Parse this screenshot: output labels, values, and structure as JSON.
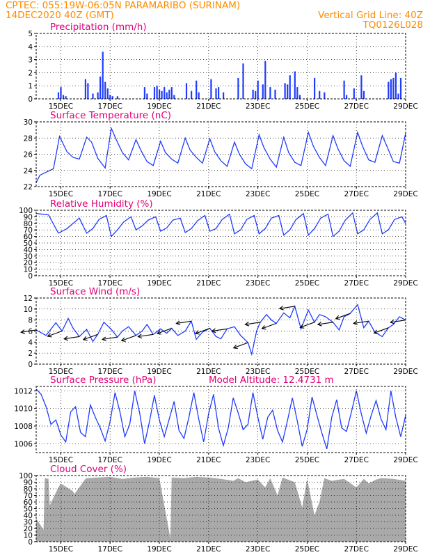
{
  "header": {
    "line1_left": "CPTEC:    055:19W-06:05N   PARAMARIBO (SURINAM)",
    "line2_left": "14DEC2020 40Z (GMT)",
    "line2_right": "Vertical Grid Line: 40Z",
    "line3_right": "TQ0126L028"
  },
  "colors": {
    "header": "#ff8c00",
    "titles": "#e0007a",
    "series": "#1f3cff",
    "cloud": "#a9a9a9",
    "vectors": "#000000"
  },
  "x_tick_labels": [
    "15DEC",
    "17DEC",
    "19DEC",
    "21DEC",
    "23DEC",
    "25DEC",
    "27DEC",
    "29DEC"
  ],
  "chart_data": [
    {
      "type": "bar",
      "title": "Precipitation (mm/h)",
      "ylim": [
        0,
        5
      ],
      "yticks": [
        0,
        1,
        2,
        3,
        4,
        5
      ],
      "x_units": "days since 14DEC2020 00Z",
      "xlim": [
        0,
        15
      ],
      "x": [
        0.9,
        1.0,
        1.1,
        1.2,
        2.0,
        2.1,
        2.3,
        2.5,
        2.6,
        2.7,
        2.8,
        2.9,
        3.0,
        3.1,
        3.3,
        4.4,
        4.5,
        4.8,
        4.9,
        5.0,
        5.1,
        5.2,
        5.3,
        5.4,
        5.5,
        5.6,
        6.1,
        6.3,
        6.5,
        6.6,
        7.1,
        7.3,
        7.4,
        7.6,
        8.2,
        8.4,
        8.8,
        8.9,
        9.0,
        9.2,
        9.3,
        9.5,
        9.7,
        10.1,
        10.2,
        10.3,
        10.5,
        10.6,
        10.7,
        11.3,
        11.5,
        11.7,
        12.5,
        12.6,
        12.9,
        13.2,
        13.3,
        14.3,
        14.4,
        14.5,
        14.6,
        14.7,
        14.8
      ],
      "values": [
        0.5,
        0.9,
        0.3,
        0.2,
        1.5,
        1.2,
        0.4,
        0.5,
        1.7,
        3.6,
        1.3,
        0.8,
        0.3,
        0.2,
        0.2,
        0.9,
        0.4,
        0.9,
        1.0,
        0.7,
        0.6,
        0.9,
        0.5,
        0.7,
        0.9,
        0.3,
        1.2,
        0.6,
        1.4,
        0.5,
        1.5,
        0.8,
        0.9,
        0.5,
        1.6,
        2.7,
        0.7,
        0.6,
        1.4,
        1.1,
        2.9,
        0.9,
        0.7,
        1.2,
        1.1,
        1.8,
        2.1,
        0.9,
        0.3,
        1.6,
        0.6,
        0.5,
        1.4,
        0.3,
        0.8,
        1.8,
        0.6,
        1.3,
        1.5,
        1.6,
        2.0,
        0.4,
        1.6
      ]
    },
    {
      "type": "line",
      "title": "Surface Temperature (nC)",
      "ylim": [
        22,
        30
      ],
      "yticks": [
        22,
        24,
        26,
        28,
        30
      ],
      "x_units": "days since 14DEC2020 00Z",
      "xlim": [
        0,
        15
      ],
      "x": [
        0,
        0.15,
        0.35,
        0.7,
        0.95,
        1.25,
        1.5,
        1.75,
        2.05,
        2.25,
        2.5,
        2.8,
        3.05,
        3.25,
        3.5,
        3.75,
        4.05,
        4.25,
        4.5,
        4.75,
        5.05,
        5.25,
        5.5,
        5.75,
        6.05,
        6.25,
        6.5,
        6.75,
        7.05,
        7.25,
        7.5,
        7.75,
        8.05,
        8.25,
        8.5,
        8.75,
        9.05,
        9.25,
        9.5,
        9.75,
        10.05,
        10.25,
        10.5,
        10.75,
        11.05,
        11.25,
        11.5,
        11.75,
        12.05,
        12.25,
        12.5,
        12.75,
        13.05,
        13.25,
        13.5,
        13.75,
        14.05,
        14.25,
        14.5,
        14.75,
        15
      ],
      "values": [
        22.5,
        23.4,
        23.7,
        24.2,
        28.2,
        26.3,
        25.6,
        25.4,
        28.1,
        27.5,
        25.5,
        24.3,
        29.2,
        27.8,
        26.2,
        25.3,
        27.8,
        26.5,
        25.1,
        24.6,
        27.6,
        26.2,
        25.4,
        24.9,
        28.0,
        26.5,
        25.6,
        24.9,
        27.9,
        26.3,
        25.2,
        24.5,
        27.5,
        26.0,
        24.8,
        24.2,
        28.4,
        26.8,
        25.4,
        24.4,
        28.1,
        26.2,
        25.0,
        24.6,
        28.7,
        27.0,
        25.6,
        24.6,
        28.3,
        26.7,
        25.2,
        24.5,
        28.7,
        27.0,
        25.3,
        25.0,
        28.3,
        26.9,
        25.1,
        24.9,
        28.6
      ]
    },
    {
      "type": "line",
      "title": "Relative Humidity (%)",
      "ylim": [
        0,
        100
      ],
      "yticks": [
        0,
        10,
        20,
        30,
        40,
        50,
        60,
        70,
        80,
        90,
        100
      ],
      "x_units": "days since 14DEC2020 00Z",
      "xlim": [
        0,
        15
      ],
      "x": [
        0,
        0.5,
        0.9,
        1.25,
        1.5,
        1.75,
        2.05,
        2.3,
        2.55,
        2.85,
        3.05,
        3.3,
        3.55,
        3.85,
        4.05,
        4.3,
        4.55,
        4.85,
        5.05,
        5.3,
        5.55,
        5.85,
        6.05,
        6.3,
        6.55,
        6.85,
        7.05,
        7.3,
        7.55,
        7.85,
        8.05,
        8.3,
        8.55,
        8.85,
        9.05,
        9.3,
        9.55,
        9.85,
        10.05,
        10.3,
        10.55,
        10.85,
        11.05,
        11.3,
        11.55,
        11.85,
        12.05,
        12.3,
        12.55,
        12.85,
        13.05,
        13.3,
        13.55,
        13.85,
        14.05,
        14.3,
        14.55,
        14.85,
        15
      ],
      "values": [
        95,
        93,
        65,
        72,
        80,
        88,
        65,
        72,
        86,
        92,
        60,
        70,
        82,
        90,
        70,
        76,
        85,
        90,
        68,
        73,
        85,
        88,
        66,
        72,
        84,
        92,
        68,
        72,
        86,
        94,
        64,
        70,
        86,
        92,
        64,
        72,
        88,
        92,
        62,
        70,
        86,
        95,
        62,
        72,
        88,
        94,
        60,
        68,
        85,
        96,
        64,
        70,
        86,
        96,
        64,
        70,
        86,
        90,
        80
      ]
    },
    {
      "type": "line",
      "title": "Surface Wind (m/s)",
      "ylim": [
        0,
        12
      ],
      "yticks": [
        0,
        2,
        4,
        6,
        8,
        10,
        12
      ],
      "x_units": "days since 14DEC2020 00Z",
      "xlim": [
        0,
        15
      ],
      "x": [
        0,
        0.4,
        0.8,
        1.05,
        1.3,
        1.5,
        1.75,
        2.05,
        2.3,
        2.5,
        2.75,
        3.05,
        3.3,
        3.5,
        3.75,
        4.05,
        4.3,
        4.5,
        4.75,
        5.05,
        5.3,
        5.5,
        5.75,
        6.05,
        6.3,
        6.5,
        6.75,
        7.05,
        7.3,
        7.5,
        7.75,
        8.05,
        8.3,
        8.6,
        8.75,
        8.95,
        9.1,
        9.35,
        9.55,
        9.75,
        10.05,
        10.3,
        10.5,
        10.75,
        11.05,
        11.3,
        11.5,
        11.75,
        12.05,
        12.3,
        12.5,
        12.75,
        13.05,
        13.3,
        13.5,
        13.75,
        14.05,
        14.3,
        14.5,
        14.75,
        15
      ],
      "values": [
        6.2,
        5.2,
        7.5,
        6.0,
        8.3,
        6.5,
        5.0,
        6.3,
        4.1,
        5.4,
        7.6,
        6.3,
        4.9,
        6.0,
        6.8,
        5.2,
        6.0,
        7.2,
        5.4,
        6.4,
        5.6,
        6.5,
        5.2,
        6.0,
        7.8,
        4.5,
        5.8,
        6.5,
        5.0,
        4.6,
        6.4,
        6.8,
        5.2,
        3.9,
        1.8,
        6.0,
        7.6,
        9.0,
        8.0,
        7.4,
        9.3,
        8.4,
        10.5,
        6.4,
        9.8,
        7.6,
        9.0,
        8.6,
        7.6,
        6.2,
        8.6,
        9.2,
        10.8,
        6.6,
        7.8,
        5.8,
        5.0,
        6.6,
        7.2,
        8.6,
        8.0
      ]
    },
    {
      "type": "line",
      "title": "Surface Pressure (hPa)",
      "annotation": "Model Altitude: 12.4731  m",
      "ylim": [
        1005,
        1012.5
      ],
      "yticks": [
        1006,
        1008,
        1010,
        1012
      ],
      "x_units": "days since 14DEC2020 00Z",
      "xlim": [
        0,
        15
      ],
      "x": [
        0,
        0.2,
        0.4,
        0.6,
        0.8,
        1.0,
        1.2,
        1.4,
        1.6,
        1.8,
        2.0,
        2.2,
        2.4,
        2.6,
        2.8,
        3.0,
        3.2,
        3.4,
        3.6,
        3.8,
        4.0,
        4.2,
        4.4,
        4.6,
        4.8,
        5.0,
        5.2,
        5.4,
        5.6,
        5.8,
        6.0,
        6.2,
        6.4,
        6.6,
        6.8,
        7.0,
        7.2,
        7.4,
        7.6,
        7.8,
        8.0,
        8.2,
        8.4,
        8.6,
        8.8,
        9.0,
        9.2,
        9.4,
        9.6,
        9.8,
        10.0,
        10.2,
        10.4,
        10.6,
        10.8,
        11.0,
        11.2,
        11.4,
        11.6,
        11.8,
        12.0,
        12.2,
        12.4,
        12.6,
        12.8,
        13.0,
        13.2,
        13.4,
        13.6,
        13.8,
        14.0,
        14.2,
        14.4,
        14.6,
        14.8,
        15
      ],
      "values": [
        1012.2,
        1011.6,
        1010.2,
        1008.2,
        1008.7,
        1007.0,
        1006.2,
        1009.6,
        1010.2,
        1007.3,
        1006.8,
        1010.4,
        1009.0,
        1007.8,
        1006.3,
        1008.5,
        1011.8,
        1009.6,
        1006.8,
        1008.2,
        1012.0,
        1009.5,
        1006.0,
        1008.5,
        1011.5,
        1008.7,
        1006.8,
        1008.8,
        1010.8,
        1007.5,
        1006.6,
        1009.0,
        1011.8,
        1008.8,
        1006.2,
        1009.4,
        1011.6,
        1007.8,
        1005.8,
        1007.8,
        1011.2,
        1009.5,
        1007.6,
        1008.2,
        1011.8,
        1009.0,
        1006.5,
        1009.0,
        1009.8,
        1007.5,
        1006.2,
        1008.6,
        1011.2,
        1008.6,
        1005.7,
        1007.6,
        1011.3,
        1009.2,
        1007.2,
        1005.4,
        1009.0,
        1011.0,
        1007.8,
        1007.4,
        1009.6,
        1012.0,
        1009.4,
        1007.2,
        1009.2,
        1010.9,
        1008.8,
        1007.6,
        1012.0,
        1009.0,
        1006.8,
        1009.2
      ]
    },
    {
      "type": "area",
      "title": "Cloud Cover (%)",
      "ylim": [
        0,
        100
      ],
      "yticks": [
        0,
        10,
        20,
        30,
        40,
        50,
        60,
        70,
        80,
        90,
        100
      ],
      "x_units": "days since 14DEC2020 00Z",
      "xlim": [
        0,
        15
      ],
      "x": [
        0,
        0.3,
        0.35,
        0.5,
        0.55,
        0.9,
        1.0,
        1.5,
        1.55,
        2.0,
        2.05,
        2.5,
        3.0,
        3.5,
        4.0,
        4.5,
        5.0,
        5.45,
        5.5,
        6.0,
        6.5,
        7.0,
        7.5,
        8.0,
        8.2,
        8.5,
        9.0,
        9.3,
        9.5,
        9.8,
        10.0,
        10.5,
        10.8,
        11.0,
        11.3,
        11.5,
        11.7,
        12.0,
        12.5,
        13.0,
        13.3,
        13.5,
        13.8,
        14.0,
        14.5,
        15
      ],
      "values": [
        35,
        18,
        96,
        95,
        55,
        82,
        88,
        76,
        72,
        95,
        96,
        97,
        98,
        95,
        97,
        98,
        96,
        5,
        97,
        96,
        98,
        97,
        95,
        92,
        96,
        90,
        94,
        82,
        96,
        70,
        97,
        90,
        52,
        95,
        40,
        60,
        96,
        92,
        95,
        82,
        95,
        88,
        94,
        96,
        95,
        92
      ]
    }
  ]
}
